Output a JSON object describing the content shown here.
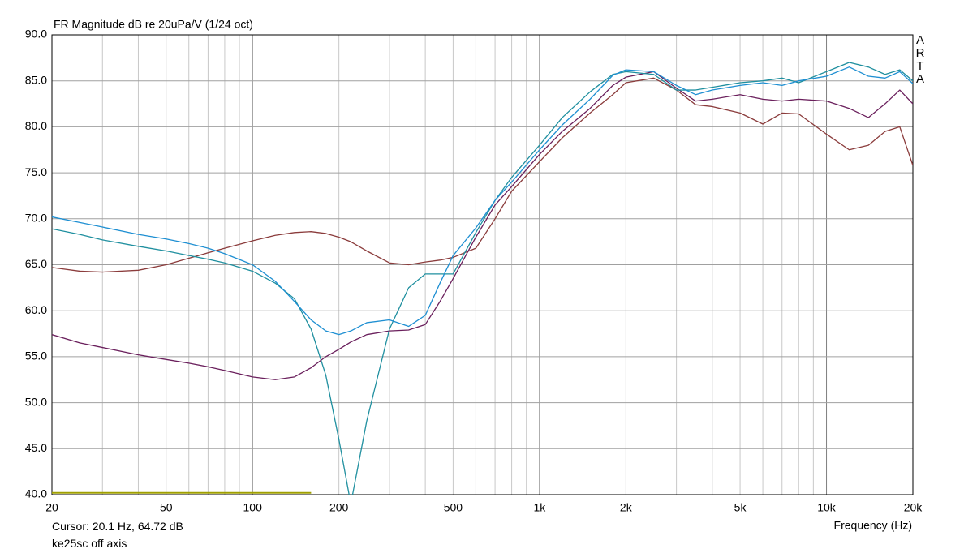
{
  "chart_data": {
    "type": "line",
    "title": "FR Magnitude dB re 20uPa/V (1/24 oct)",
    "watermark": "ARTA",
    "x_label": "Frequency (Hz)",
    "cursor_text": "Cursor: 20.1 Hz, 64.72 dB",
    "subtitle": "ke25sc off axis",
    "xlog": true,
    "grid": true,
    "xlim": [
      20,
      20000
    ],
    "ylim": [
      40,
      90
    ],
    "xticks": [
      20,
      50,
      100,
      200,
      500,
      {
        "value": 1000,
        "label": "1k"
      },
      {
        "value": 2000,
        "label": "2k"
      },
      {
        "value": 5000,
        "label": "5k"
      },
      {
        "value": 10000,
        "label": "10k"
      },
      {
        "value": 20000,
        "label": "20k"
      }
    ],
    "x_minor_ticks": [
      30,
      40,
      60,
      70,
      80,
      90,
      300,
      400,
      600,
      700,
      800,
      900,
      3000,
      4000,
      6000,
      7000,
      8000,
      9000
    ],
    "yticks": [
      {
        "value": 40,
        "label": "40.0"
      },
      {
        "value": 45,
        "label": "45.0"
      },
      {
        "value": 50,
        "label": "50.0"
      },
      {
        "value": 55,
        "label": "55.0"
      },
      {
        "value": 60,
        "label": "60.0"
      },
      {
        "value": 65,
        "label": "65.0"
      },
      {
        "value": 70,
        "label": "70.0"
      },
      {
        "value": 75,
        "label": "75.0"
      },
      {
        "value": 80,
        "label": "80.0"
      },
      {
        "value": 85,
        "label": "85.0"
      },
      {
        "value": 90,
        "label": "90.0"
      }
    ],
    "x": [
      20,
      25,
      30,
      40,
      50,
      60,
      70,
      80,
      100,
      120,
      140,
      160,
      180,
      200,
      220,
      250,
      300,
      350,
      400,
      450,
      500,
      600,
      700,
      800,
      1000,
      1200,
      1500,
      1800,
      2000,
      2500,
      3000,
      3500,
      4000,
      5000,
      6000,
      7000,
      8000,
      10000,
      12000,
      14000,
      16000,
      18000,
      20000
    ],
    "series": [
      {
        "color": "#a0a000",
        "values": [
          40.2,
          40.2,
          40.2,
          40.2,
          40.2,
          40.2,
          40.2,
          40.2,
          40.2,
          40.2,
          40.2,
          40.2,
          null,
          null,
          null,
          null,
          null,
          null,
          null,
          null,
          null,
          null,
          null,
          null,
          null,
          null,
          null,
          null,
          null,
          null,
          null,
          null,
          null,
          null,
          null,
          null,
          null,
          null,
          null,
          null,
          null,
          null,
          null
        ]
      },
      {
        "color": "#8b3c3c",
        "values": [
          64.7,
          64.3,
          64.2,
          64.4,
          65,
          65.7,
          66.3,
          66.8,
          67.6,
          68.2,
          68.5,
          68.6,
          68.4,
          68,
          67.5,
          66.5,
          65.2,
          65,
          65.3,
          65.5,
          65.8,
          66.8,
          70,
          73,
          76.2,
          78.8,
          81.5,
          83.5,
          84.8,
          85.3,
          84,
          82.4,
          82.2,
          81.5,
          80.3,
          81.5,
          81.4,
          79.2,
          77.5,
          78,
          79.5,
          80,
          75.8
        ]
      },
      {
        "color": "#6a1f5c",
        "values": [
          57.4,
          56.5,
          56,
          55.2,
          54.7,
          54.3,
          53.9,
          53.5,
          52.8,
          52.5,
          52.8,
          53.8,
          55,
          55.8,
          56.6,
          57.4,
          57.8,
          57.9,
          58.5,
          61,
          63.5,
          68,
          71.5,
          73.5,
          77,
          79.5,
          82,
          84.5,
          85.4,
          86,
          84.2,
          82.8,
          83,
          83.5,
          83,
          82.8,
          83,
          82.8,
          82,
          81,
          82.5,
          84,
          82.5
        ]
      },
      {
        "color": "#1f8f9f",
        "values": [
          68.9,
          68.3,
          67.7,
          67,
          66.5,
          66,
          65.6,
          65.2,
          64.3,
          63,
          61.3,
          58,
          53,
          46,
          39,
          48,
          58,
          62.5,
          64,
          64,
          64,
          68.5,
          72,
          74.5,
          78,
          81,
          83.8,
          85.7,
          86,
          85.7,
          84,
          84,
          84.3,
          84.8,
          85,
          85.3,
          84.8,
          86,
          87,
          86.5,
          85.7,
          86.2,
          85
        ]
      },
      {
        "color": "#1e8fd2",
        "values": [
          70.2,
          69.6,
          69.1,
          68.3,
          67.8,
          67.3,
          66.8,
          66.2,
          65,
          63.2,
          61,
          59,
          57.8,
          57.4,
          57.8,
          58.7,
          59,
          58.3,
          59.5,
          63,
          66,
          69,
          72,
          74,
          77.5,
          80.2,
          83,
          85.6,
          86.2,
          86,
          84.5,
          83.5,
          84,
          84.5,
          84.8,
          84.5,
          85,
          85.5,
          86.5,
          85.5,
          85.3,
          86,
          84.7
        ]
      }
    ]
  }
}
